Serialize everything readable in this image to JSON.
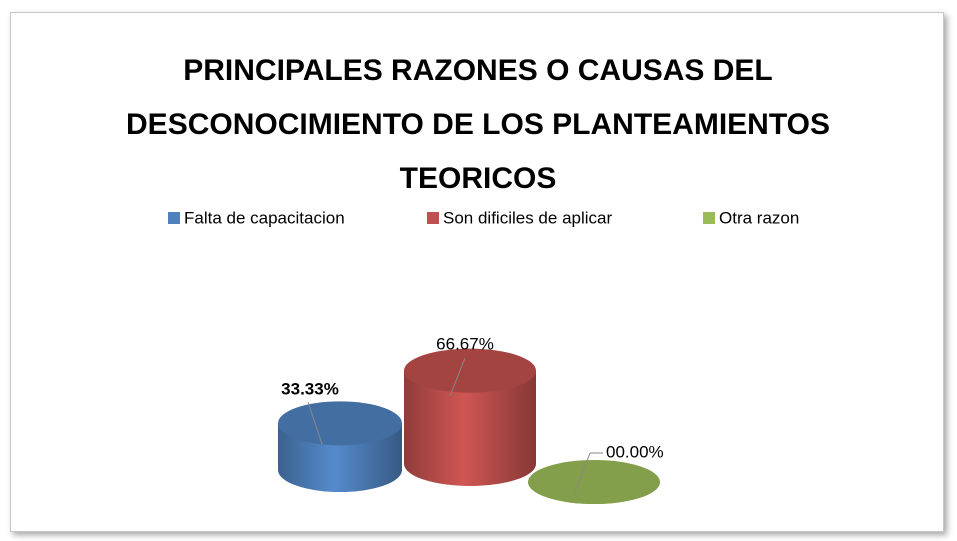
{
  "chart_data": {
    "type": "cylinder",
    "title": "PRINCIPALES RAZONES O CAUSAS DEL DESCONOCIMIENTO DE LOS PLANTEAMIENTOS TEORICOS",
    "series": [
      {
        "name": "Falta de capacitacion",
        "color": "#4f81bd",
        "values": [
          33.33
        ],
        "value_labels": [
          "33.33%"
        ]
      },
      {
        "name": "Son dificiles de aplicar",
        "color": "#c0504d",
        "values": [
          66.67
        ],
        "value_labels": [
          "66.67%"
        ]
      },
      {
        "name": "Otra razon",
        "color": "#9bbb59",
        "values": [
          0
        ],
        "value_labels": [
          "00.00%"
        ]
      }
    ],
    "legend": "top"
  }
}
